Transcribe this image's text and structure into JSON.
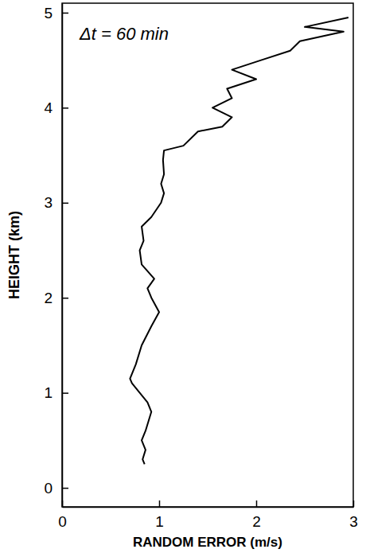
{
  "chart_data": {
    "type": "line",
    "annotation": "Δt = 60 min",
    "x_label": "RANDOM ERROR (m/s)",
    "y_label": "HEIGHT (km)",
    "color": "#000000",
    "x": [
      0.85,
      0.83,
      0.86,
      0.82,
      0.86,
      0.92,
      0.88,
      0.8,
      0.72,
      0.7,
      0.76,
      0.82,
      0.92,
      1.0,
      0.92,
      0.88,
      0.95,
      0.82,
      0.8,
      0.84,
      0.82,
      0.92,
      1.02,
      1.05,
      1.02,
      1.05,
      1.04,
      1.05,
      1.25,
      1.4,
      1.65,
      1.75,
      1.55,
      1.75,
      1.7,
      2.0,
      1.75,
      2.05,
      2.35,
      2.45,
      2.9,
      2.5,
      2.95
    ],
    "values": [
      0.25,
      0.3,
      0.4,
      0.5,
      0.6,
      0.8,
      0.9,
      1.0,
      1.1,
      1.15,
      1.3,
      1.5,
      1.7,
      1.85,
      2.0,
      2.1,
      2.2,
      2.35,
      2.5,
      2.6,
      2.75,
      2.85,
      3.0,
      3.1,
      3.2,
      3.3,
      3.45,
      3.55,
      3.6,
      3.75,
      3.8,
      3.9,
      4.0,
      4.1,
      4.2,
      4.3,
      4.4,
      4.5,
      4.6,
      4.7,
      4.8,
      4.85,
      4.95
    ],
    "xlim": [
      0,
      3
    ],
    "xticks": [
      0,
      1,
      2,
      3
    ],
    "ylim": [
      -0.2,
      5.1
    ],
    "yticks": [
      0,
      1,
      2,
      3,
      4,
      5
    ],
    "grid": false
  }
}
